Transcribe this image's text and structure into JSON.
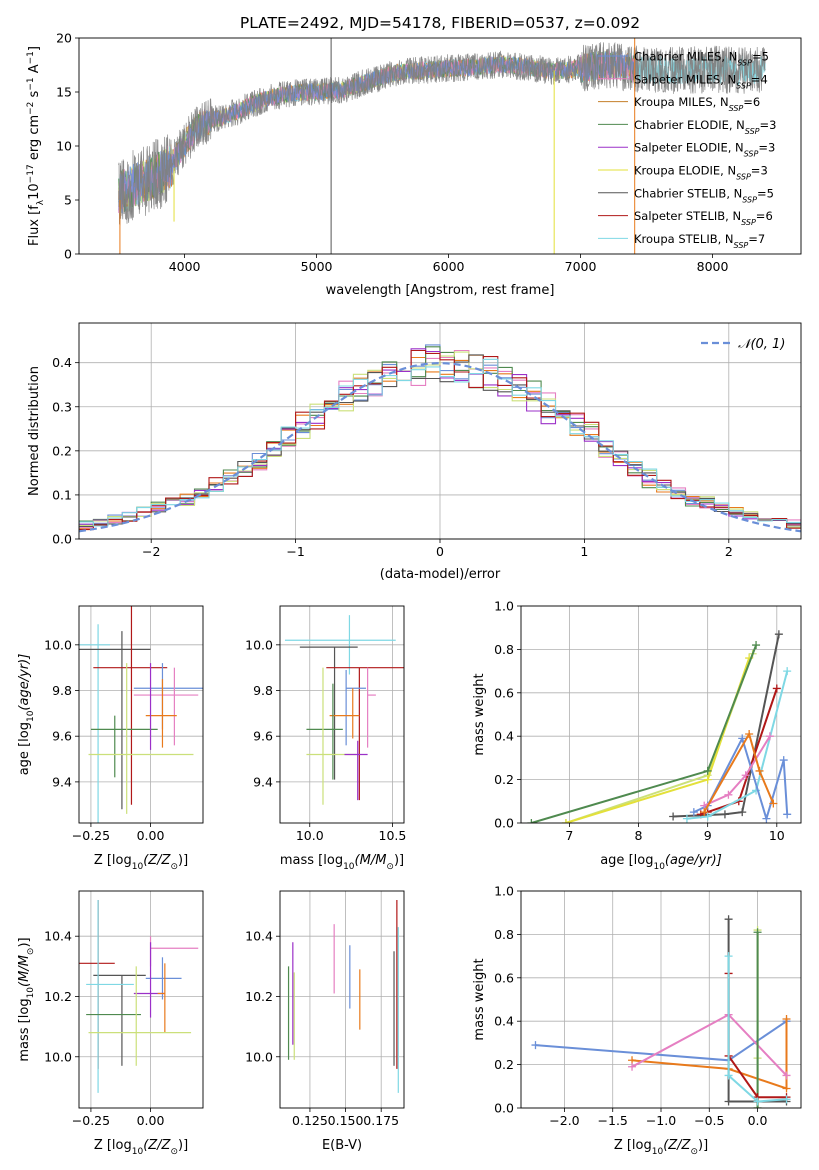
{
  "figure": {
    "title": "PLATE=2492, MJD=54178, FIBERID=0537, z=0.092"
  },
  "colors": {
    "Chabrier MILES": "#6a8fd8",
    "Salpeter MILES": "#e57fc2",
    "Kroupa MILES": "#c47f2a",
    "Chabrier ELODIE": "#4f8a4f",
    "Salpeter ELODIE": "#9b30c8",
    "Kroupa ELODIE": "#e3e03a",
    "Chabrier STELIB": "#555555",
    "Salpeter STELIB": "#b01818",
    "Kroupa STELIB": "#7fd8e4",
    "orange": "#e87a1c",
    "olive": "#cbe07a",
    "grey": "#7f7f7f",
    "normal": "#6a8fd8"
  },
  "chart_data": [
    {
      "id": "spectrum",
      "type": "line",
      "title": "PLATE=2492, MJD=54178, FIBERID=0537, z=0.092",
      "xlabel": "wavelength [Angstrom, rest frame]",
      "ylabel_parts": [
        "Flux [f",
        "λ",
        "10",
        "−17",
        " erg cm",
        "−2",
        " s",
        "−1",
        " A",
        "−1",
        "]"
      ],
      "xlim": [
        3200,
        8670
      ],
      "ylim": [
        0,
        20
      ],
      "xticks": [
        4000,
        5000,
        6000,
        7000,
        8000
      ],
      "yticks": [
        0,
        5,
        10,
        15,
        20
      ],
      "legend_position": "right",
      "continuum_knots_x": [
        3500,
        3600,
        3700,
        3800,
        3900,
        4000,
        4100,
        4200,
        4300,
        4400,
        4500,
        4600,
        4800,
        5000,
        5200,
        5400,
        5600,
        5800,
        6000,
        6200,
        6400,
        6600,
        6800,
        7000,
        7200,
        7400,
        7600,
        7800,
        8000,
        8200,
        8400
      ],
      "continuum_knots_y": [
        5.6,
        6.2,
        6.8,
        7.4,
        8.2,
        10.2,
        11.8,
        12.4,
        12.7,
        13.2,
        13.8,
        14.3,
        14.9,
        15.0,
        15.2,
        16.0,
        16.8,
        17.0,
        17.2,
        17.3,
        17.6,
        17.3,
        16.9,
        17.2,
        17.5,
        17.2,
        17.0,
        17.0,
        17.1,
        17.0,
        17.1
      ],
      "spikes": [
        {
          "x": 5110,
          "ymin": 0,
          "ymax": 20,
          "series": "Chabrier STELIB"
        },
        {
          "x": 6800,
          "ymin": 0,
          "ymax": 17,
          "series": "Kroupa ELODIE"
        },
        {
          "x": 3920,
          "ymin": 3,
          "ymax": 8,
          "series": "Kroupa ELODIE"
        },
        {
          "x": 7410,
          "ymin": 0,
          "ymax": 20,
          "series": "orange"
        },
        {
          "x": 3510,
          "ymin": 0,
          "ymax": 5,
          "series": "orange"
        }
      ],
      "legend": [
        {
          "name": "Chabrier MILES",
          "nssp": "5"
        },
        {
          "name": "Salpeter MILES",
          "nssp": "4"
        },
        {
          "name": "Kroupa MILES",
          "nssp": "6"
        },
        {
          "name": "Chabrier ELODIE",
          "nssp": "3"
        },
        {
          "name": "Salpeter ELODIE",
          "nssp": "3"
        },
        {
          "name": "Kroupa ELODIE",
          "nssp": "3"
        },
        {
          "name": "Chabrier STELIB",
          "nssp": "5"
        },
        {
          "name": "Salpeter STELIB",
          "nssp": "6"
        },
        {
          "name": "Kroupa STELIB",
          "nssp": "7"
        }
      ]
    },
    {
      "id": "residuals",
      "type": "line",
      "xlabel": "(data-model)/error",
      "ylabel": "Normed distribution",
      "xlim": [
        -2.5,
        2.5
      ],
      "ylim": [
        0,
        0.49
      ],
      "xticks": [
        -2,
        -1,
        0,
        1,
        2
      ],
      "yticks": [
        0.0,
        0.1,
        0.2,
        0.3,
        0.4
      ],
      "grid": true,
      "bin_width": 0.1,
      "histogram_series": [
        "Chabrier MILES",
        "Salpeter MILES",
        "orange",
        "Chabrier ELODIE",
        "Salpeter ELODIE",
        "olive",
        "Chabrier STELIB",
        "Salpeter STELIB",
        "Kroupa STELIB"
      ],
      "legend": [
        {
          "name": "𝒩(0, 1)",
          "style": "dashed"
        }
      ]
    },
    {
      "id": "age_vs_Z",
      "type": "scatter",
      "xlabel_parts": [
        "Z [log",
        "10",
        "(Z/Z",
        "⊙",
        ")]"
      ],
      "ylabel_parts": [
        "age  [log",
        "10",
        "(age/yr)]"
      ],
      "xlim": [
        -0.3,
        0.22
      ],
      "ylim": [
        9.22,
        10.17
      ],
      "xticks": [
        -0.25,
        0.0
      ],
      "yticks": [
        9.4,
        9.6,
        9.8,
        10.0
      ],
      "grid": true,
      "points": [
        {
          "series": "Kroupa STELIB",
          "x": -0.22,
          "y": 10.0,
          "xerr": [
            0.27,
            0.05
          ],
          "yerr": [
            0.78,
            0.09
          ]
        },
        {
          "series": "Chabrier STELIB",
          "x": -0.12,
          "y": 9.98,
          "xerr": [
            0.28,
            0.12
          ],
          "yerr": [
            0.7,
            0.08
          ]
        },
        {
          "series": "Salpeter STELIB",
          "x": -0.08,
          "y": 9.9,
          "xerr": [
            0.16,
            0.15
          ],
          "yerr": [
            0.6,
            0.28
          ]
        },
        {
          "series": "Chabrier MILES",
          "x": 0.05,
          "y": 9.81,
          "xerr": [
            0.12,
            0.2
          ],
          "yerr": [
            0.18,
            0.11
          ]
        },
        {
          "series": "Salpeter MILES",
          "x": 0.1,
          "y": 9.78,
          "xerr": [
            0.17,
            0.1
          ],
          "yerr": [
            0.22,
            0.12
          ]
        },
        {
          "series": "orange",
          "x": 0.05,
          "y": 9.69,
          "xerr": [
            0.07,
            0.06
          ],
          "yerr": [
            0.14,
            0.16
          ]
        },
        {
          "series": "Chabrier ELODIE",
          "x": -0.15,
          "y": 9.63,
          "xerr": [
            0.1,
            0.18
          ],
          "yerr": [
            0.21,
            0.06
          ]
        },
        {
          "series": "olive",
          "x": -0.1,
          "y": 9.52,
          "xerr": [
            0.16,
            0.28
          ],
          "yerr": [
            0.26,
            0.4
          ]
        },
        {
          "series": "Salpeter ELODIE",
          "x": 0.0,
          "y": 9.84,
          "xerr": [
            0.0,
            0.0
          ],
          "yerr": [
            0.3,
            0.08
          ]
        }
      ]
    },
    {
      "id": "age_vs_mass",
      "type": "scatter",
      "xlabel_parts": [
        "mass [log",
        "10",
        "(M/M",
        "⊙",
        ")]"
      ],
      "ylabel": "",
      "xlim": [
        9.82,
        10.57
      ],
      "ylim": [
        9.22,
        10.17
      ],
      "xticks": [
        10.0,
        10.5
      ],
      "yticks": [
        9.4,
        9.6,
        9.8,
        10.0
      ],
      "grid": true,
      "points": [
        {
          "series": "Kroupa STELIB",
          "x": 10.24,
          "y": 10.02,
          "xerr": [
            0.39,
            0.28
          ],
          "yerr": [
            0.15,
            0.11
          ]
        },
        {
          "series": "Chabrier STELIB",
          "x": 10.15,
          "y": 9.99,
          "xerr": [
            0.21,
            0.14
          ],
          "yerr": [
            0.58,
            0.0
          ]
        },
        {
          "series": "Salpeter STELIB",
          "x": 10.3,
          "y": 9.9,
          "xerr": [
            0.2,
            0.3
          ],
          "yerr": [
            0.58,
            0.0
          ]
        },
        {
          "series": "Chabrier MILES",
          "x": 10.22,
          "y": 9.81,
          "xerr": [
            0.0,
            0.12
          ],
          "yerr": [
            0.25,
            0.08
          ]
        },
        {
          "series": "Salpeter MILES",
          "x": 10.35,
          "y": 9.78,
          "xerr": [
            0.0,
            0.05
          ],
          "yerr": [
            0.23,
            0.12
          ]
        },
        {
          "series": "orange",
          "x": 10.26,
          "y": 9.69,
          "xerr": [
            0.14,
            0.04
          ],
          "yerr": [
            0.1,
            0.12
          ]
        },
        {
          "series": "Chabrier ELODIE",
          "x": 10.14,
          "y": 9.63,
          "xerr": [
            0.16,
            0.06
          ],
          "yerr": [
            0.22,
            0.2
          ]
        },
        {
          "series": "olive",
          "x": 10.08,
          "y": 9.52,
          "xerr": [
            0.1,
            0.2
          ],
          "yerr": [
            0.22,
            0.38
          ]
        },
        {
          "series": "Salpeter ELODIE",
          "x": 10.29,
          "y": 9.52,
          "xerr": [
            0.08,
            0.06
          ],
          "yerr": [
            0.2,
            0.06
          ]
        }
      ]
    },
    {
      "id": "weight_vs_age",
      "type": "line",
      "xlabel_parts": [
        "age  [log",
        "10",
        "(age/yr)]"
      ],
      "ylabel": "mass weight",
      "xlim": [
        6.3,
        10.35
      ],
      "ylim": [
        0,
        1
      ],
      "xticks": [
        7,
        8,
        9,
        10
      ],
      "yticks": [
        0.0,
        0.2,
        0.4,
        0.6,
        0.8,
        1.0
      ],
      "grid": true,
      "series": [
        {
          "series": "olive",
          "x": [
            6.95,
            9.0,
            9.65
          ],
          "y": [
            0.0,
            0.22,
            0.78
          ]
        },
        {
          "series": "Kroupa ELODIE",
          "x": [
            6.95,
            9.0,
            9.6
          ],
          "y": [
            0.0,
            0.2,
            0.76
          ]
        },
        {
          "series": "Chabrier ELODIE",
          "x": [
            6.45,
            9.0,
            9.7
          ],
          "y": [
            0.0,
            0.24,
            0.82
          ]
        },
        {
          "series": "Chabrier STELIB",
          "x": [
            8.5,
            9.25,
            9.5,
            10.03
          ],
          "y": [
            0.03,
            0.04,
            0.05,
            0.87
          ]
        },
        {
          "series": "Salpeter STELIB",
          "x": [
            8.9,
            9.0,
            9.45,
            10.0
          ],
          "y": [
            0.04,
            0.05,
            0.1,
            0.62
          ]
        },
        {
          "series": "Kroupa STELIB",
          "x": [
            8.7,
            9.0,
            9.7,
            10.15
          ],
          "y": [
            0.02,
            0.03,
            0.15,
            0.7
          ]
        },
        {
          "series": "Chabrier MILES",
          "x": [
            8.8,
            9.0,
            9.5,
            9.85,
            10.1,
            10.15
          ],
          "y": [
            0.05,
            0.08,
            0.39,
            0.02,
            0.29,
            0.04
          ]
        },
        {
          "series": "Salpeter MILES",
          "x": [
            8.95,
            9.3,
            9.55,
            9.9
          ],
          "y": [
            0.08,
            0.13,
            0.22,
            0.4
          ]
        },
        {
          "series": "orange",
          "x": [
            8.95,
            9.6,
            9.75,
            9.95
          ],
          "y": [
            0.05,
            0.41,
            0.24,
            0.09
          ]
        }
      ]
    },
    {
      "id": "mass_vs_Z",
      "type": "scatter",
      "xlabel_parts": [
        "Z [log",
        "10",
        "(Z/Z",
        "⊙",
        ")]"
      ],
      "ylabel_parts": [
        "mass [log",
        "10",
        "(M/M",
        "⊙",
        ")]"
      ],
      "xlim": [
        -0.3,
        0.22
      ],
      "ylim": [
        9.83,
        10.55
      ],
      "xticks": [
        -0.25,
        0.0
      ],
      "yticks": [
        10.0,
        10.2,
        10.4
      ],
      "grid": true,
      "points": [
        {
          "series": "Salpeter STELIB",
          "x": -0.22,
          "y": 10.31,
          "xerr": [
            0.08,
            0.07
          ],
          "yerr": [
            0.35,
            0.21
          ]
        },
        {
          "series": "Salpeter MILES",
          "x": 0.0,
          "y": 10.36,
          "xerr": [
            0.0,
            0.2
          ],
          "yerr": [
            0.06,
            0.04
          ]
        },
        {
          "series": "Chabrier STELIB",
          "x": -0.12,
          "y": 10.27,
          "xerr": [
            0.12,
            0.1
          ],
          "yerr": [
            0.3,
            0.0
          ]
        },
        {
          "series": "Chabrier MILES",
          "x": 0.05,
          "y": 10.26,
          "xerr": [
            0.07,
            0.08
          ],
          "yerr": [
            0.07,
            0.07
          ]
        },
        {
          "series": "Kroupa STELIB",
          "x": -0.22,
          "y": 10.24,
          "xerr": [
            0.05,
            0.15
          ],
          "yerr": [
            0.36,
            0.28
          ]
        },
        {
          "series": "Salpeter ELODIE",
          "x": 0.0,
          "y": 10.21,
          "xerr": [
            0.07,
            0.06
          ],
          "yerr": [
            0.08,
            0.17
          ]
        },
        {
          "series": "orange",
          "x": 0.06,
          "y": 10.21,
          "xerr": [
            0.03,
            0.0
          ],
          "yerr": [
            0.13,
            0.1
          ]
        },
        {
          "series": "Chabrier ELODIE",
          "x": -0.15,
          "y": 10.14,
          "xerr": [
            0.12,
            0.11
          ],
          "yerr": [
            0.0,
            0.0
          ]
        },
        {
          "series": "olive",
          "x": -0.06,
          "y": 10.08,
          "xerr": [
            0.2,
            0.23
          ],
          "yerr": [
            0.11,
            0.22
          ]
        }
      ]
    },
    {
      "id": "mass_vs_ebv",
      "type": "scatter",
      "xlabel": "E(B-V)",
      "ylabel": "",
      "xlim": [
        0.104,
        0.191
      ],
      "ylim": [
        9.83,
        10.55
      ],
      "xticks": [
        0.125,
        0.15,
        0.175
      ],
      "yticks": [
        10.0,
        10.2,
        10.4
      ],
      "grid": true,
      "points": [
        {
          "series": "Salpeter STELIB",
          "x": 0.186,
          "y": 10.31,
          "xerr": [
            0.0,
            0.0
          ],
          "yerr": [
            0.35,
            0.21
          ]
        },
        {
          "series": "Chabrier STELIB",
          "x": 0.184,
          "y": 10.27,
          "xerr": [
            0.0,
            0.0
          ],
          "yerr": [
            0.3,
            0.08
          ]
        },
        {
          "series": "Kroupa STELIB",
          "x": 0.187,
          "y": 10.24,
          "xerr": [
            0.0,
            0.0
          ],
          "yerr": [
            0.36,
            0.19
          ]
        },
        {
          "series": "Salpeter MILES",
          "x": 0.142,
          "y": 10.32,
          "xerr": [
            0.0,
            0.0
          ],
          "yerr": [
            0.11,
            0.12
          ]
        },
        {
          "series": "Chabrier MILES",
          "x": 0.153,
          "y": 10.26,
          "xerr": [
            0.0,
            0.0
          ],
          "yerr": [
            0.1,
            0.11
          ]
        },
        {
          "series": "orange",
          "x": 0.16,
          "y": 10.21,
          "xerr": [
            0.0,
            0.0
          ],
          "yerr": [
            0.12,
            0.08
          ]
        },
        {
          "series": "Salpeter ELODIE",
          "x": 0.113,
          "y": 10.25,
          "xerr": [
            0.0,
            0.0
          ],
          "yerr": [
            0.21,
            0.13
          ]
        },
        {
          "series": "Chabrier ELODIE",
          "x": 0.11,
          "y": 10.14,
          "xerr": [
            0.0,
            0.0
          ],
          "yerr": [
            0.15,
            0.16
          ]
        },
        {
          "series": "olive",
          "x": 0.114,
          "y": 10.18,
          "xerr": [
            0.0,
            0.0
          ],
          "yerr": [
            0.19,
            0.1
          ]
        }
      ]
    },
    {
      "id": "weight_vs_Z",
      "type": "line",
      "xlabel_parts": [
        "Z [log",
        "10",
        "(Z/Z",
        "⊙",
        ")]"
      ],
      "ylabel": "mass weight",
      "xlim": [
        -2.45,
        0.45
      ],
      "ylim": [
        0,
        1
      ],
      "xticks": [
        -2.0,
        -1.5,
        -1.0,
        -0.5,
        0.0
      ],
      "yticks": [
        0.0,
        0.2,
        0.4,
        0.6,
        0.8,
        1.0
      ],
      "grid": true,
      "series": [
        {
          "series": "Chabrier MILES",
          "x": [
            -2.3,
            -0.3,
            0.3
          ],
          "y": [
            0.29,
            0.22,
            0.4
          ]
        },
        {
          "series": "orange",
          "x": [
            -1.3,
            -0.3,
            0.3,
            0.3
          ],
          "y": [
            0.22,
            0.18,
            0.09,
            0.41
          ]
        },
        {
          "series": "Salpeter MILES",
          "x": [
            -1.3,
            -0.3,
            0.3
          ],
          "y": [
            0.19,
            0.43,
            0.15
          ]
        },
        {
          "series": "olive",
          "x": [
            0.0,
            0.0,
            0.0
          ],
          "y": [
            0.82,
            0.23,
            0.0
          ]
        },
        {
          "series": "Chabrier ELODIE",
          "x": [
            0.0,
            0.0
          ],
          "y": [
            0.81,
            0.0
          ]
        },
        {
          "series": "Chabrier STELIB",
          "x": [
            -0.3,
            -0.3,
            0.0,
            0.3
          ],
          "y": [
            0.87,
            0.03,
            0.03,
            0.03
          ]
        },
        {
          "series": "Salpeter STELIB",
          "x": [
            -0.3,
            -0.3,
            0.0,
            0.3
          ],
          "y": [
            0.62,
            0.24,
            0.05,
            0.05
          ]
        },
        {
          "series": "Kroupa STELIB",
          "x": [
            -0.3,
            -0.3,
            0.0,
            0.3
          ],
          "y": [
            0.7,
            0.15,
            0.03,
            0.04
          ]
        }
      ]
    }
  ]
}
